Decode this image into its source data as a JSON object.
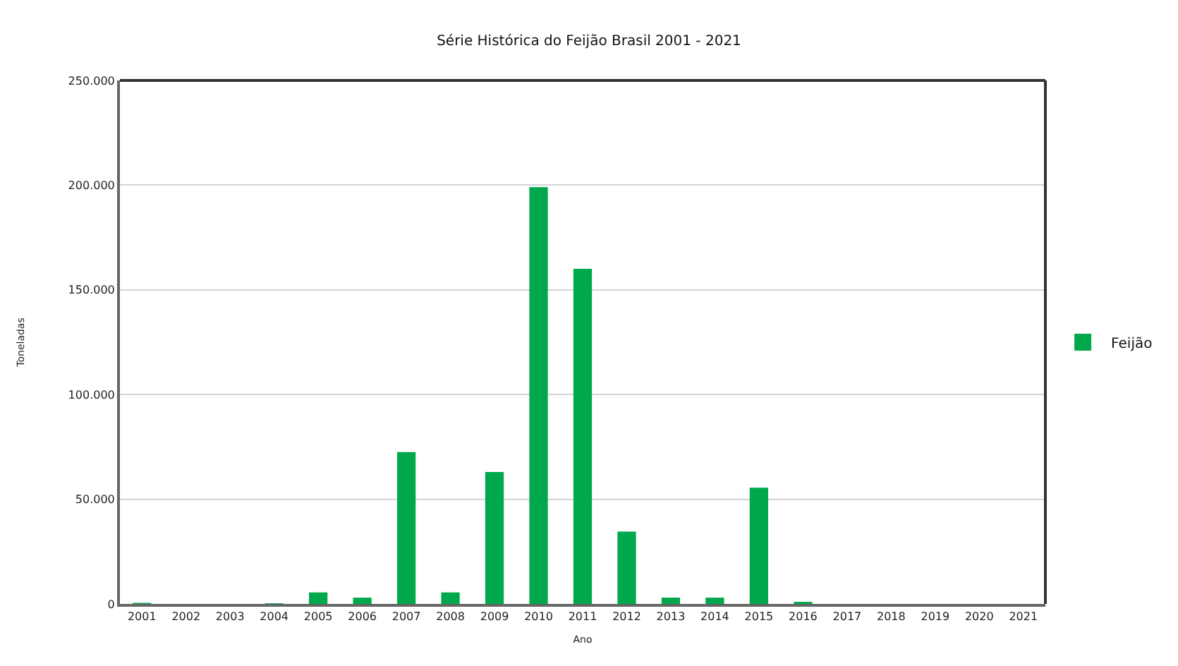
{
  "chart_data": {
    "type": "bar",
    "title": "Série Histórica do Feijão Brasil 2001 - 2021",
    "xlabel": "Ano",
    "ylabel": "Toneladas",
    "categories": [
      "2001",
      "2002",
      "2003",
      "2004",
      "2005",
      "2006",
      "2007",
      "2008",
      "2009",
      "2010",
      "2011",
      "2012",
      "2013",
      "2014",
      "2015",
      "2016",
      "2017",
      "2018",
      "2019",
      "2020",
      "2021"
    ],
    "series": [
      {
        "name": "Feijão",
        "color": "#00a84c",
        "values": [
          500,
          0,
          0,
          300,
          5500,
          3000,
          72500,
          5500,
          63000,
          199000,
          160000,
          34500,
          3000,
          3000,
          55500,
          1000,
          0,
          0,
          0,
          0,
          0
        ]
      }
    ],
    "ylim": [
      0,
      250000
    ],
    "yticks": [
      0,
      {
        "value": 50000,
        "label": "50.000"
      },
      {
        "value": 100000,
        "label": "100.000"
      },
      {
        "value": 150000,
        "label": "150.000"
      },
      {
        "value": 200000,
        "label": "200.000"
      },
      {
        "value": 250000,
        "label": "250.000"
      }
    ],
    "grid": "y",
    "legend": "right"
  }
}
